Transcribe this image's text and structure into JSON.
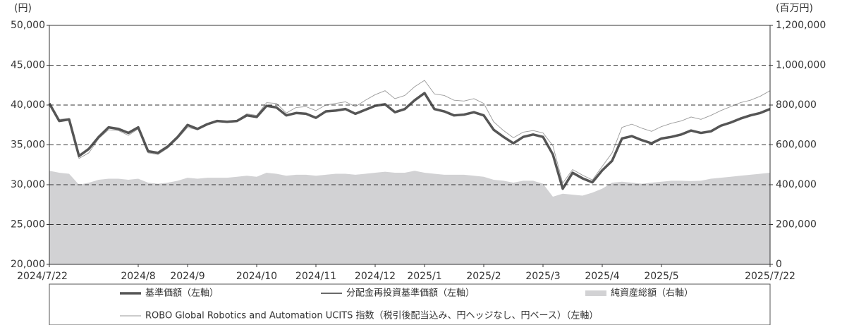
{
  "chart_data": {
    "type": "line",
    "y_unit_label": "(円)",
    "y2_unit_label": "(百万円)",
    "categories": [
      "2024/7/22",
      null,
      null,
      null,
      null,
      null,
      null,
      null,
      null,
      "2024/8",
      null,
      null,
      null,
      null,
      "2024/9",
      null,
      null,
      null,
      null,
      null,
      null,
      "2024/10",
      null,
      null,
      null,
      null,
      null,
      "2024/11",
      null,
      null,
      null,
      null,
      null,
      "2024/12",
      null,
      null,
      null,
      null,
      "2025/1",
      null,
      null,
      null,
      null,
      null,
      "2025/2",
      null,
      null,
      null,
      null,
      null,
      "2025/3",
      null,
      null,
      null,
      null,
      null,
      "2025/4",
      null,
      null,
      null,
      null,
      null,
      "2025/5",
      null,
      null,
      null,
      null,
      null,
      null,
      null,
      null,
      null,
      null,
      "2025/7/22"
    ],
    "ylim": [
      20000,
      50000
    ],
    "yticks": [
      {
        "value": 20000,
        "label": "20,000"
      },
      {
        "value": 25000,
        "label": "25,000"
      },
      {
        "value": 30000,
        "label": "30,000"
      },
      {
        "value": 35000,
        "label": "35,000"
      },
      {
        "value": 40000,
        "label": "40,000"
      },
      {
        "value": 45000,
        "label": "45,000"
      },
      {
        "value": 50000,
        "label": "50,000"
      }
    ],
    "y2lim": [
      0,
      1200000
    ],
    "y2ticks": [
      0,
      {
        "value": 200000,
        "label": "200,000"
      },
      {
        "value": 400000,
        "label": "400,000"
      },
      {
        "value": 600000,
        "label": "600,000"
      },
      {
        "value": 800000,
        "label": "800,000"
      },
      {
        "value": 1000000,
        "label": "1,000,000"
      },
      {
        "value": 1200000,
        "label": "1,200,000"
      }
    ],
    "grid": true,
    "series": [
      {
        "name": "基準価額（左軸）",
        "type": "line",
        "color": "#555555",
        "values": [
          40200,
          38000,
          38200,
          33600,
          34500,
          36000,
          37200,
          37000,
          36500,
          37200,
          34200,
          34000,
          34800,
          36000,
          37500,
          37000,
          37600,
          38000,
          37900,
          38000,
          38700,
          38500,
          39900,
          39700,
          38700,
          39000,
          38900,
          38400,
          39200,
          39300,
          39500,
          38900,
          39400,
          39900,
          40100,
          39100,
          39500,
          40600,
          41500,
          39500,
          39200,
          38700,
          38800,
          39100,
          38700,
          36900,
          36000,
          35200,
          36000,
          36300,
          36000,
          33800,
          29500,
          31500,
          30800,
          30300,
          31800,
          33000,
          35800,
          36100,
          35600,
          35200,
          35800,
          36000,
          36300,
          36800,
          36500,
          36700,
          37400,
          37800,
          38300,
          38700,
          39000,
          39500
        ]
      },
      {
        "name": "分配金再投資基準価額（左軸）",
        "type": "line",
        "color": "#111111",
        "values": [
          40200,
          38000,
          38200,
          33600,
          34500,
          36000,
          37200,
          37000,
          36500,
          37200,
          34200,
          34000,
          34800,
          36000,
          37500,
          37000,
          37600,
          38000,
          37900,
          38000,
          38700,
          38500,
          39900,
          39700,
          38700,
          39000,
          38900,
          38400,
          39200,
          39300,
          39500,
          38900,
          39400,
          39900,
          40100,
          39100,
          39500,
          40600,
          41500,
          39500,
          39200,
          38700,
          38800,
          39100,
          38700,
          36900,
          36000,
          35200,
          36000,
          36300,
          36000,
          33800,
          29500,
          31500,
          30800,
          30300,
          31800,
          33000,
          35800,
          36100,
          35600,
          35200,
          35800,
          36000,
          36300,
          36800,
          36500,
          36700,
          37400,
          37800,
          38300,
          38700,
          39000,
          39500
        ]
      },
      {
        "name": "純資産総額（右軸）",
        "type": "area",
        "axis": "y2",
        "color": "#d2d2d4",
        "values": [
          470000,
          460000,
          455000,
          400000,
          410000,
          425000,
          430000,
          430000,
          425000,
          430000,
          410000,
          405000,
          410000,
          420000,
          435000,
          430000,
          435000,
          435000,
          435000,
          440000,
          445000,
          440000,
          460000,
          455000,
          445000,
          450000,
          450000,
          445000,
          450000,
          455000,
          455000,
          450000,
          455000,
          460000,
          465000,
          460000,
          460000,
          470000,
          460000,
          455000,
          450000,
          450000,
          450000,
          445000,
          440000,
          425000,
          420000,
          410000,
          420000,
          420000,
          405000,
          340000,
          355000,
          350000,
          345000,
          360000,
          380000,
          410000,
          415000,
          410000,
          405000,
          410000,
          415000,
          420000,
          420000,
          418000,
          420000,
          430000,
          435000,
          440000,
          445000,
          450000,
          455000,
          460000
        ]
      },
      {
        "name": "ROBO Global Robotics and Automation UCITS 指数（税引後配当込み、円ヘッジなし、円ベース）（左軸）",
        "type": "line",
        "color": "#9a9a9a",
        "values": [
          40000,
          38200,
          38300,
          33300,
          34000,
          35800,
          36900,
          36800,
          36200,
          37000,
          34000,
          33800,
          34600,
          35800,
          37200,
          36900,
          37500,
          37900,
          37800,
          38100,
          38900,
          38700,
          40300,
          40200,
          39000,
          39700,
          39800,
          39300,
          40000,
          40200,
          40400,
          39800,
          40600,
          41300,
          41800,
          40800,
          41200,
          42300,
          43100,
          41400,
          41200,
          40600,
          40500,
          40800,
          40200,
          37900,
          36800,
          35900,
          36600,
          36800,
          36500,
          34900,
          30200,
          31900,
          31200,
          30600,
          32300,
          34000,
          37200,
          37600,
          37100,
          36700,
          37300,
          37700,
          38000,
          38500,
          38200,
          38700,
          39300,
          39800,
          40300,
          40600,
          41100,
          41800
        ]
      }
    ]
  }
}
